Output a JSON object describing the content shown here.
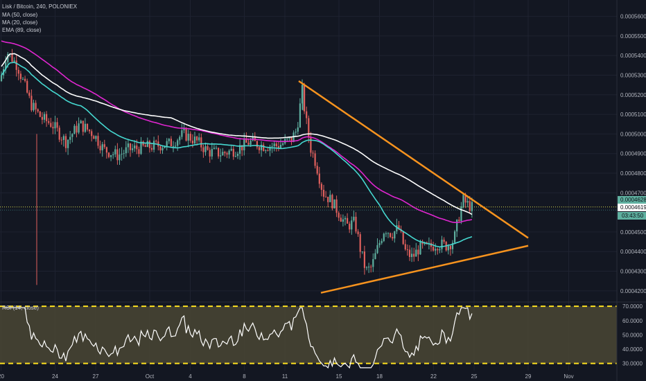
{
  "header": {
    "symbol_line": "Lisk / Bitcoin, 240, POLONIEX",
    "ma50": "MA (50, close)",
    "ma20": "MA (20, close)",
    "ema89": "EMA (89, close)"
  },
  "rsi_header": "RSI (14, close)",
  "price_tags": {
    "last": "0.00046280",
    "ema": "0.00046191",
    "countdown": "03:43:50"
  },
  "colors": {
    "background": "#131722",
    "grid": "#1e2230",
    "up": "#5fb0a0",
    "down": "#e0605d",
    "ma50": "#ffffff",
    "ma20": "#45d8d0",
    "ema89": "#e026d0",
    "trendline": "#f7931e",
    "rsi_fill": "#4a4634",
    "rsi_bands": "#ffe21f",
    "last_price_dotted": "#d8d84a"
  },
  "chart_data": {
    "type": "candlestick",
    "y_axis": {
      "ticks": [
        "0.00056000",
        "0.00055000",
        "0.00054000",
        "0.00053000",
        "0.00052000",
        "0.00051000",
        "0.00050000",
        "0.00049000",
        "0.00048000",
        "0.00047000",
        "0.00045000",
        "0.00044000",
        "0.00043000",
        "0.00042000"
      ],
      "range": [
        0.000415,
        0.0005655
      ]
    },
    "x_axis": {
      "ticks": [
        "20",
        "24",
        "27",
        "Oct",
        "4",
        "8",
        "11",
        "15",
        "18",
        "22",
        "25",
        "29",
        "Nov"
      ]
    },
    "last_price": 0.0004628,
    "ema_value": 0.00046191,
    "approx_ohlc_summary": {
      "open_period_high": 0.000548,
      "spike_low": 0.000423,
      "oct10_high": 0.000525,
      "oct15_low": 0.0004225,
      "oct22_high": 0.00047,
      "current": 0.0004628
    },
    "trendlines": [
      {
        "name": "descending",
        "from": [
          "Oct 10",
          0.000527
        ],
        "to": [
          "Oct 28",
          0.000447
        ]
      },
      {
        "name": "ascending",
        "from": [
          "Oct 13",
          0.000419
        ],
        "to": [
          "Oct 28",
          0.000443
        ]
      }
    ],
    "rsi": {
      "ticks": [
        "70.0000",
        "60.0000",
        "50.0000",
        "40.0000",
        "30.0000"
      ],
      "range": [
        25,
        72
      ],
      "upper_band": 70,
      "lower_band": 30
    }
  }
}
